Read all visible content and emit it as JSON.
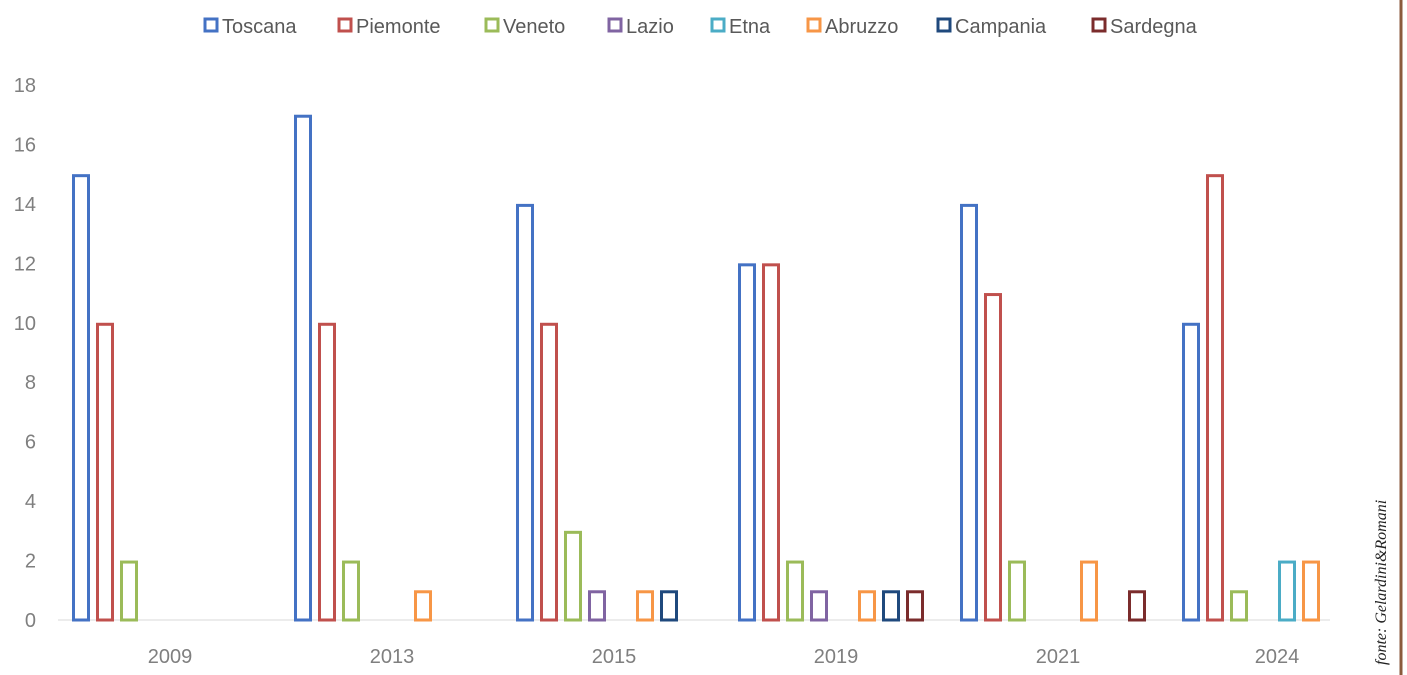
{
  "chart_data": {
    "type": "bar",
    "categories": [
      "2009",
      "2013",
      "2015",
      "2019",
      "2021",
      "2024"
    ],
    "series": [
      {
        "name": "Toscana",
        "color": "#4472C4",
        "values": [
          15,
          17,
          14,
          12,
          14,
          10
        ]
      },
      {
        "name": "Piemonte",
        "color": "#C0504D",
        "values": [
          10,
          10,
          10,
          12,
          11,
          15
        ]
      },
      {
        "name": "Veneto",
        "color": "#9BBB59",
        "values": [
          2,
          2,
          3,
          2,
          2,
          1
        ]
      },
      {
        "name": "Lazio",
        "color": "#8064A2",
        "values": [
          0,
          0,
          1,
          1,
          0,
          0
        ]
      },
      {
        "name": "Etna",
        "color": "#4BACC6",
        "values": [
          0,
          0,
          0,
          0,
          0,
          2
        ]
      },
      {
        "name": "Abruzzo",
        "color": "#F79646",
        "values": [
          0,
          1,
          1,
          1,
          2,
          2
        ]
      },
      {
        "name": "Campania",
        "color": "#1F497D",
        "values": [
          0,
          0,
          1,
          1,
          0,
          0
        ]
      },
      {
        "name": "Sardegna",
        "color": "#7B2C2C",
        "values": [
          0,
          0,
          0,
          1,
          1,
          0
        ]
      }
    ],
    "ylim": [
      0,
      18
    ],
    "yticks": [
      0,
      2,
      4,
      6,
      8,
      10,
      12,
      14,
      16,
      18
    ],
    "grid": false,
    "legend_position": "top",
    "bar_style": "outlined",
    "source_note": "fonte: Gelardini&Romani"
  }
}
